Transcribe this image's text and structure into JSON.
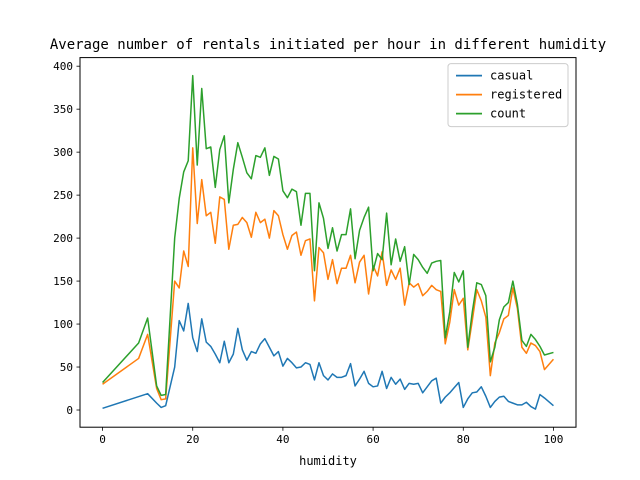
{
  "chart_data": {
    "type": "line",
    "title": "Average number of rentals initiated per hour in different humidity",
    "xlabel": "humidity",
    "ylabel": "",
    "xlim": [
      -5,
      105
    ],
    "ylim": [
      -20,
      410
    ],
    "xticks": [
      0,
      20,
      40,
      60,
      80,
      100
    ],
    "yticks": [
      0,
      50,
      100,
      150,
      200,
      250,
      300,
      350,
      400
    ],
    "legend_position": "top-right",
    "grid": false,
    "series": [
      {
        "name": "casual",
        "color": "#1f77b4",
        "x": [
          0,
          10,
          12,
          13,
          14,
          16,
          17,
          18,
          19,
          20,
          21,
          22,
          23,
          24,
          25,
          26,
          27,
          28,
          29,
          30,
          31,
          32,
          33,
          34,
          35,
          36,
          37,
          38,
          39,
          40,
          41,
          42,
          43,
          44,
          45,
          46,
          47,
          48,
          49,
          50,
          51,
          52,
          53,
          54,
          55,
          56,
          57,
          58,
          59,
          60,
          61,
          62,
          63,
          64,
          65,
          66,
          67,
          68,
          69,
          70,
          71,
          72,
          73,
          74,
          75,
          76,
          77,
          78,
          79,
          80,
          81,
          82,
          83,
          84,
          85,
          86,
          87,
          88,
          89,
          90,
          91,
          92,
          93,
          94,
          95,
          96,
          97,
          98,
          100
        ],
        "values": [
          2,
          19,
          8,
          3,
          5,
          50,
          104,
          92,
          124,
          84,
          68,
          106,
          79,
          74,
          65,
          55,
          80,
          55,
          65,
          95,
          70,
          58,
          68,
          66,
          77,
          83,
          73,
          63,
          68,
          51,
          60,
          55,
          49,
          50,
          55,
          53,
          35,
          55,
          40,
          35,
          42,
          38,
          38,
          40,
          54,
          28,
          36,
          45,
          31,
          27,
          28,
          45,
          25,
          38,
          30,
          36,
          24,
          31,
          30,
          31,
          20,
          27,
          34,
          37,
          8,
          15,
          20,
          26,
          32,
          3,
          13,
          20,
          21,
          27,
          16,
          3,
          10,
          15,
          16,
          10,
          8,
          6,
          6,
          9,
          4,
          1,
          18,
          14,
          5
        ]
      },
      {
        "name": "registered",
        "color": "#ff7f0e",
        "x": [
          0,
          8,
          10,
          12,
          13,
          14,
          16,
          17,
          18,
          19,
          20,
          21,
          22,
          23,
          24,
          25,
          26,
          27,
          28,
          29,
          30,
          31,
          32,
          33,
          34,
          35,
          36,
          37,
          38,
          39,
          40,
          41,
          42,
          43,
          44,
          45,
          46,
          47,
          48,
          49,
          50,
          51,
          52,
          53,
          54,
          55,
          56,
          57,
          58,
          59,
          60,
          61,
          62,
          63,
          64,
          65,
          66,
          67,
          68,
          69,
          70,
          71,
          72,
          73,
          74,
          75,
          76,
          77,
          78,
          79,
          80,
          81,
          82,
          83,
          84,
          85,
          86,
          87,
          88,
          89,
          90,
          91,
          92,
          93,
          94,
          95,
          96,
          97,
          98,
          100
        ],
        "values": [
          30,
          60,
          88,
          25,
          12,
          13,
          150,
          142,
          185,
          167,
          305,
          217,
          268,
          226,
          230,
          194,
          248,
          245,
          187,
          215,
          216,
          224,
          218,
          201,
          230,
          218,
          222,
          200,
          232,
          226,
          204,
          187,
          203,
          207,
          180,
          197,
          199,
          127,
          189,
          183,
          152,
          175,
          147,
          165,
          165,
          180,
          148,
          172,
          180,
          135,
          168,
          156,
          184,
          145,
          163,
          152,
          165,
          122,
          148,
          143,
          147,
          133,
          138,
          145,
          140,
          138,
          77,
          102,
          140,
          122,
          130,
          70,
          104,
          140,
          127,
          108,
          40,
          78,
          90,
          106,
          110,
          142,
          118,
          73,
          66,
          78,
          75,
          68,
          47,
          59
        ]
      },
      {
        "name": "count",
        "color": "#2ca02c",
        "x": [
          0,
          8,
          10,
          12,
          13,
          14,
          16,
          17,
          18,
          19,
          20,
          21,
          22,
          23,
          24,
          25,
          26,
          27,
          28,
          29,
          30,
          31,
          32,
          33,
          34,
          35,
          36,
          37,
          38,
          39,
          40,
          41,
          42,
          43,
          44,
          45,
          46,
          47,
          48,
          49,
          50,
          51,
          52,
          53,
          54,
          55,
          56,
          57,
          58,
          59,
          60,
          61,
          62,
          63,
          64,
          65,
          66,
          67,
          68,
          69,
          70,
          71,
          72,
          73,
          74,
          75,
          76,
          77,
          78,
          79,
          80,
          81,
          82,
          83,
          84,
          85,
          86,
          87,
          88,
          89,
          90,
          91,
          92,
          93,
          94,
          95,
          96,
          97,
          98,
          100
        ],
        "values": [
          32,
          78,
          107,
          28,
          17,
          18,
          200,
          246,
          277,
          290,
          389,
          285,
          374,
          304,
          306,
          259,
          303,
          319,
          241,
          280,
          311,
          294,
          276,
          269,
          296,
          294,
          305,
          273,
          295,
          292,
          255,
          247,
          257,
          254,
          215,
          252,
          252,
          162,
          241,
          223,
          188,
          212,
          185,
          204,
          204,
          234,
          176,
          209,
          224,
          236,
          162,
          182,
          175,
          229,
          169,
          199,
          173,
          190,
          146,
          181,
          175,
          166,
          159,
          171,
          173,
          174,
          84,
          114,
          160,
          149,
          162,
          73,
          114,
          148,
          146,
          133,
          56,
          73,
          105,
          120,
          125,
          150,
          123,
          81,
          74,
          88,
          82,
          74,
          64,
          67
        ]
      }
    ]
  }
}
